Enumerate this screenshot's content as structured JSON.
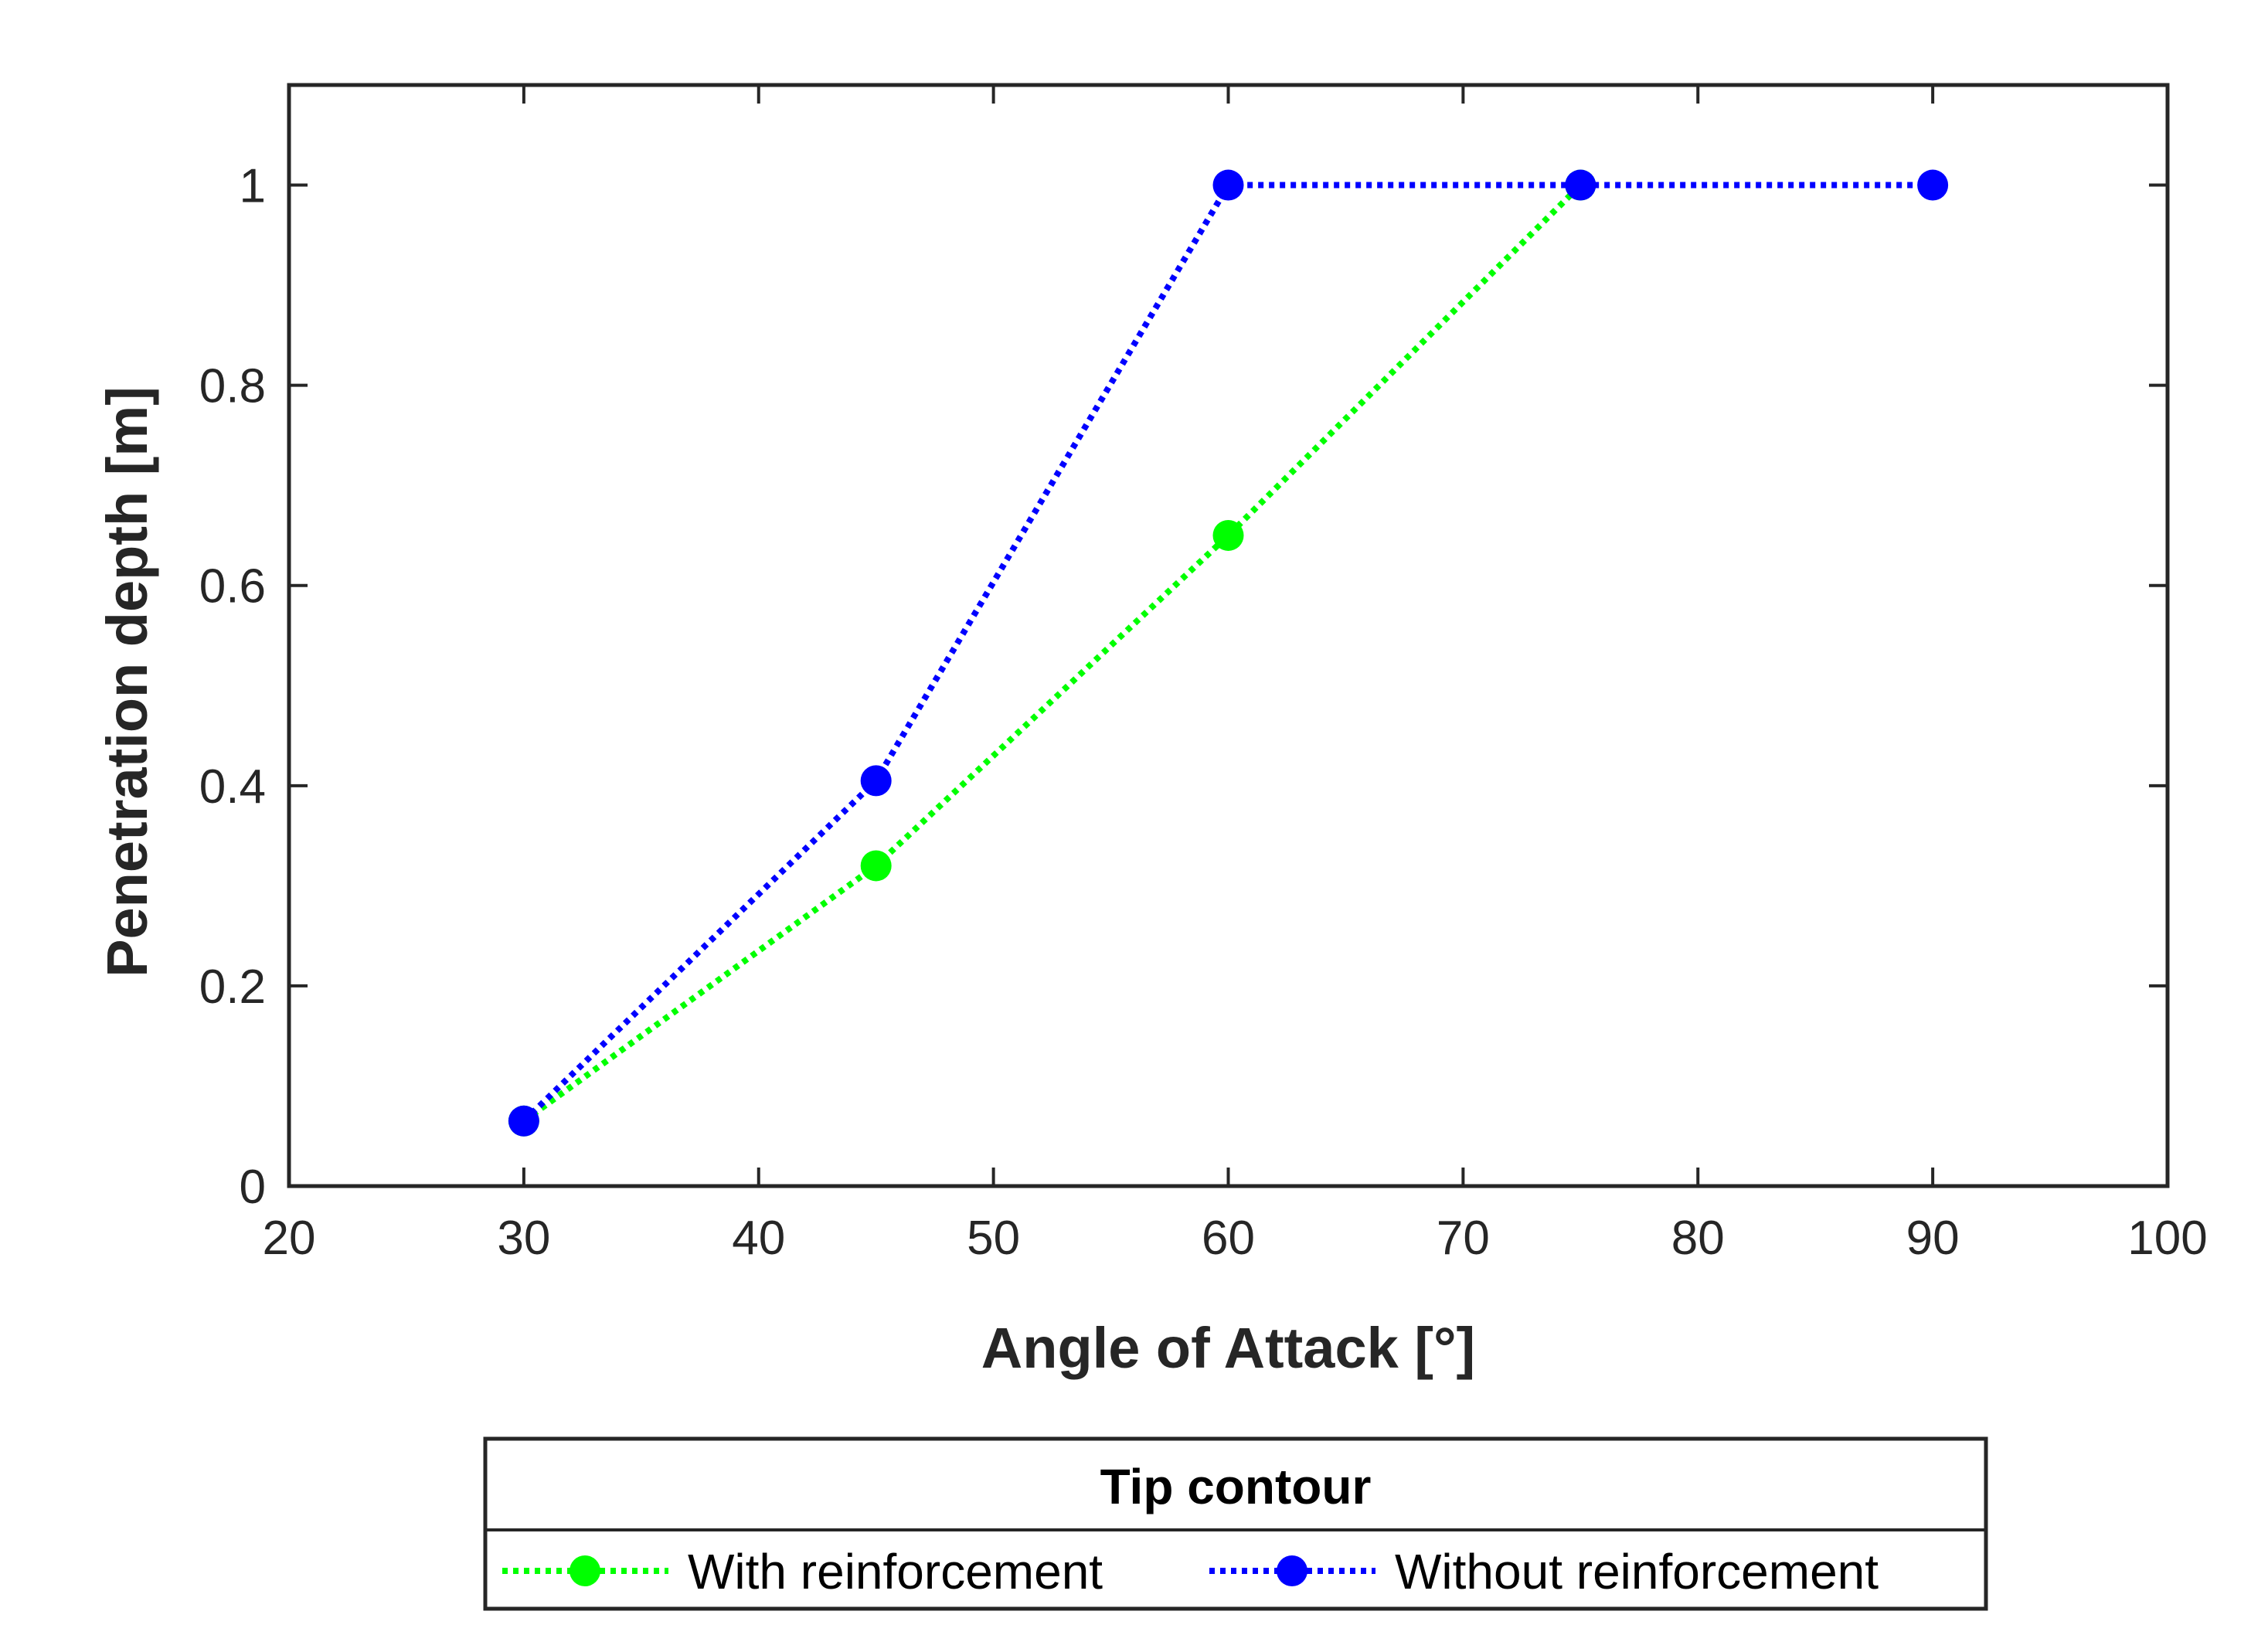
{
  "chart_data": {
    "type": "line",
    "title": "",
    "xlabel": "Angle of Attack [°]",
    "ylabel": "Penetration depth [m]",
    "xlim": [
      20,
      100
    ],
    "ylim": [
      0,
      1.1
    ],
    "xticks": [
      20,
      30,
      40,
      50,
      60,
      70,
      80,
      90,
      100
    ],
    "xtick_labels": [
      "20",
      "30",
      "40",
      "50",
      "60",
      "70",
      "80",
      "90",
      "100"
    ],
    "yticks": [
      0,
      0.2,
      0.4,
      0.6,
      0.8,
      1
    ],
    "ytick_labels": [
      "0",
      "0.2",
      "0.4",
      "0.6",
      "0.8",
      "1"
    ],
    "grid": false,
    "legend": {
      "title": "Tip contour",
      "placement": "below plot, outside"
    },
    "series": [
      {
        "name": "With reinforcement",
        "color": "#00ff00",
        "line_style": "dotted",
        "marker": "circle",
        "x": [
          30,
          45,
          60,
          75
        ],
        "y": [
          0.065,
          0.32,
          0.65,
          1.0
        ]
      },
      {
        "name": "Without reinforcement",
        "color": "#0000ff",
        "line_style": "dotted",
        "marker": "circle",
        "x": [
          30,
          45,
          60,
          75,
          90
        ],
        "y": [
          0.065,
          0.405,
          1.0,
          1.0,
          1.0
        ]
      }
    ]
  }
}
